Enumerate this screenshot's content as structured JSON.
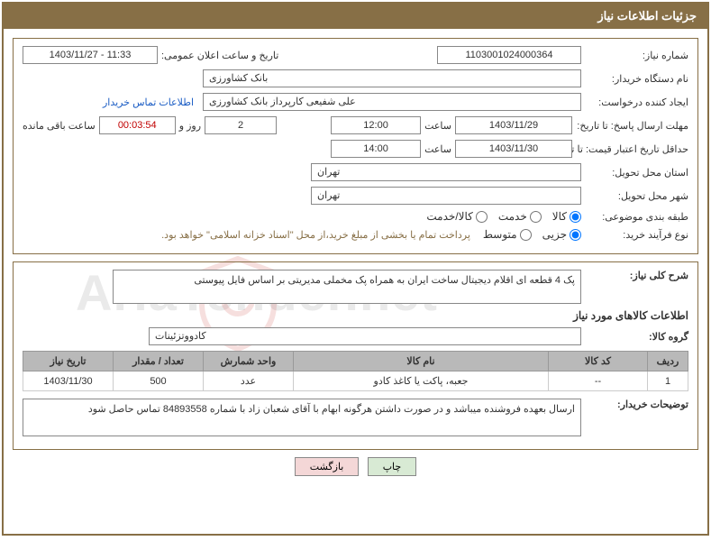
{
  "header": {
    "title": "جزئیات اطلاعات نیاز"
  },
  "panel1": {
    "need_no_label": "شماره نیاز:",
    "need_no": "1103001024000364",
    "announce_label": "تاریخ و ساعت اعلان عمومی:",
    "announce_value": "1403/11/27 - 11:33",
    "buyer_org_label": "نام دستگاه خریدار:",
    "buyer_org": "بانک کشاورزی",
    "requester_label": "ایجاد کننده درخواست:",
    "requester": "علی شفیعی کارپرداز بانک کشاورزی",
    "buyer_contact_link": "اطلاعات تماس خریدار",
    "deadline_label": "مهلت ارسال پاسخ: تا تاریخ:",
    "deadline_date": "1403/11/29",
    "time_label": "ساعت",
    "deadline_time": "12:00",
    "days_and": "روز و",
    "days_value": "2",
    "remain_time": "00:03:54",
    "remain_label": "ساعت باقی مانده",
    "validity_label": "حداقل تاریخ اعتبار قیمت: تا تاریخ:",
    "validity_date": "1403/11/30",
    "validity_time": "14:00",
    "province_label": "استان محل تحویل:",
    "province": "تهران",
    "city_label": "شهر محل تحویل:",
    "city": "تهران",
    "category_label": "طبقه بندی موضوعی:",
    "cat_goods": "کالا",
    "cat_service": "خدمت",
    "cat_goods_service": "کالا/خدمت",
    "process_label": "نوع فرآیند خرید:",
    "proc_small": "جزیی",
    "proc_medium": "متوسط",
    "process_note": "پرداخت تمام یا بخشی از مبلغ خرید،از محل \"اسناد خزانه اسلامی\" خواهد بود."
  },
  "panel2": {
    "desc_label": "شرح کلی نیاز:",
    "desc_value": "پک 4 قطعه ای اقلام دیجیتال ساخت ایران به همراه پک مخملی مدیریتی بر اساس فایل پیوستی",
    "goods_info_title": "اطلاعات کالاهای مورد نیاز",
    "group_label": "گروه کالا:",
    "group_value": "کادووتزئینات",
    "table": {
      "headers": {
        "row": "ردیف",
        "code": "کد کالا",
        "name": "نام کالا",
        "unit": "واحد شمارش",
        "qty": "تعداد / مقدار",
        "date": "تاریخ نیاز"
      },
      "rows": [
        {
          "row": "1",
          "code": "--",
          "name": "جعبه، پاکت یا کاغذ کادو",
          "unit": "عدد",
          "qty": "500",
          "date": "1403/11/30"
        }
      ]
    },
    "buyer_notes_label": "توضیحات خریدار:",
    "buyer_notes": "ارسال بعهده فروشنده میباشد و در صورت داشتن هرگونه ابهام با آقای شعبان زاد با شماره 84893558 تماس حاصل شود"
  },
  "buttons": {
    "print": "چاپ",
    "back": "بازگشت"
  },
  "watermark": {
    "text": "AriaTender.net"
  },
  "colors": {
    "brand": "#876f46",
    "header_text": "#ffffff",
    "link": "#1a5cc4",
    "th_bg": "#b9b9b9",
    "btn_print": "#d8ead4",
    "btn_back": "#f4d7d7",
    "border": "#888888"
  }
}
